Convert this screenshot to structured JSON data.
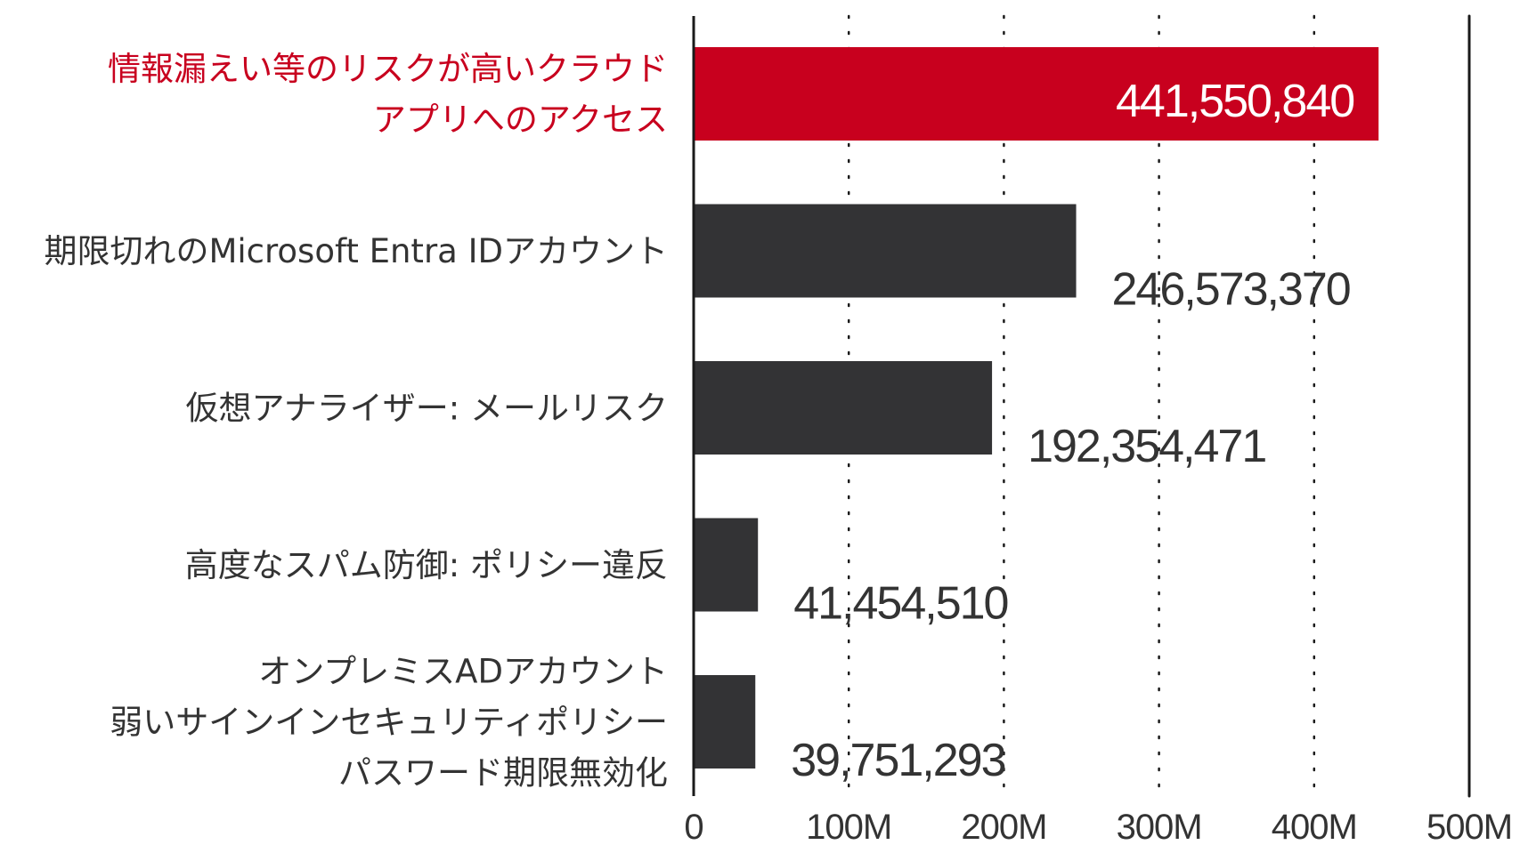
{
  "chart_data": {
    "type": "bar",
    "orientation": "horizontal",
    "categories": [
      [
        "情報漏えい等のリスクが高いクラウド",
        "アプリへのアクセス"
      ],
      [
        "期限切れのMicrosoft Entra IDアカウント"
      ],
      [
        "仮想アナライザー: メールリスク"
      ],
      [
        "高度なスパム防御: ポリシー違反"
      ],
      [
        "オンプレミスADアカウント",
        "弱いサインインセキュリティポリシー",
        "パスワード期限無効化"
      ]
    ],
    "values": [
      441550840,
      246573370,
      192354471,
      41454510,
      39751293
    ],
    "value_labels": [
      "441,550,840",
      "246,573,370",
      "192,354,471",
      "41,454,510",
      "39,751,293"
    ],
    "highlight_index": 0,
    "xlim": [
      0,
      500000000
    ],
    "xticks": [
      0,
      100000000,
      200000000,
      300000000,
      400000000,
      500000000
    ],
    "xtick_labels": [
      "0",
      "100M",
      "200M",
      "300M",
      "400M",
      "500M"
    ],
    "grid": "dotted vertical",
    "colors": {
      "highlight": "#c8001e",
      "bar": "#333335",
      "text": "#333333",
      "highlight_label": "#ffffff",
      "axis": "#1a1a1a"
    }
  }
}
